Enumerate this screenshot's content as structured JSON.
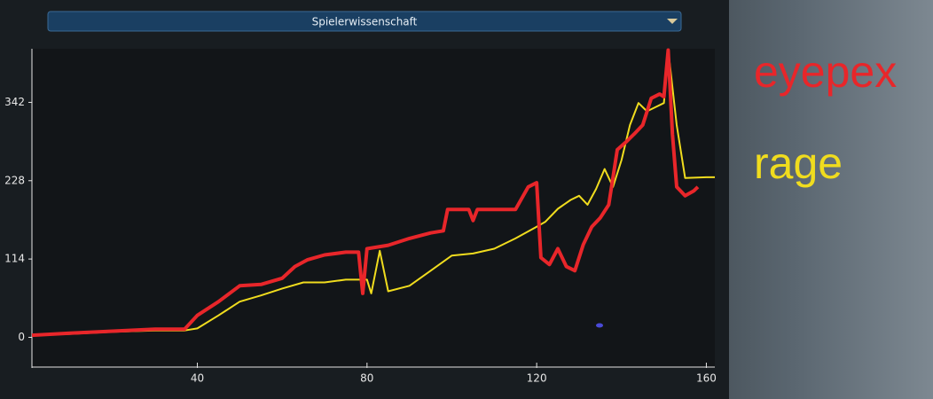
{
  "chart_data": {
    "type": "line",
    "title": "Spielerwissenschaft",
    "xlim": [
      1,
      162
    ],
    "ylim": [
      -42,
      420
    ],
    "xticks": [
      40,
      80,
      120,
      160
    ],
    "yticks": [
      0,
      114,
      228,
      342
    ],
    "series": [
      {
        "name": "eyepex",
        "color": "#e8262a",
        "x": [
          1,
          10,
          20,
          30,
          37,
          40,
          45,
          50,
          55,
          60,
          63,
          66,
          70,
          75,
          78,
          79,
          80,
          85,
          90,
          95,
          98,
          99,
          104,
          105,
          106,
          110,
          115,
          118,
          120,
          121,
          123,
          125,
          127,
          129,
          131,
          133,
          135,
          137,
          139,
          141,
          143,
          145,
          147,
          149,
          150,
          151,
          152,
          153,
          155,
          157,
          158
        ],
        "values": [
          3,
          6,
          9,
          12,
          12,
          32,
          52,
          75,
          77,
          86,
          103,
          113,
          120,
          124,
          124,
          64,
          129,
          134,
          144,
          152,
          155,
          186,
          186,
          170,
          186,
          186,
          186,
          219,
          225,
          116,
          106,
          129,
          103,
          97,
          135,
          161,
          174,
          193,
          273,
          284,
          296,
          309,
          348,
          354,
          350,
          418,
          296,
          219,
          206,
          213,
          219
        ]
      },
      {
        "name": "rage",
        "color": "#f0dc1e",
        "x": [
          1,
          10,
          20,
          30,
          37,
          40,
          45,
          50,
          55,
          60,
          65,
          70,
          75,
          80,
          81,
          83,
          85,
          90,
          95,
          100,
          105,
          110,
          115,
          120,
          122,
          125,
          128,
          130,
          132,
          134,
          136,
          138,
          140,
          142,
          144,
          146,
          148,
          150,
          151,
          153,
          155,
          160,
          162
        ],
        "values": [
          3,
          5,
          8,
          10,
          10,
          13,
          32,
          52,
          61,
          71,
          80,
          80,
          84,
          84,
          64,
          126,
          67,
          75,
          97,
          119,
          122,
          129,
          144,
          161,
          168,
          187,
          200,
          206,
          193,
          216,
          245,
          219,
          258,
          309,
          341,
          329,
          335,
          341,
          419,
          309,
          232,
          233,
          233
        ]
      }
    ]
  }
}
